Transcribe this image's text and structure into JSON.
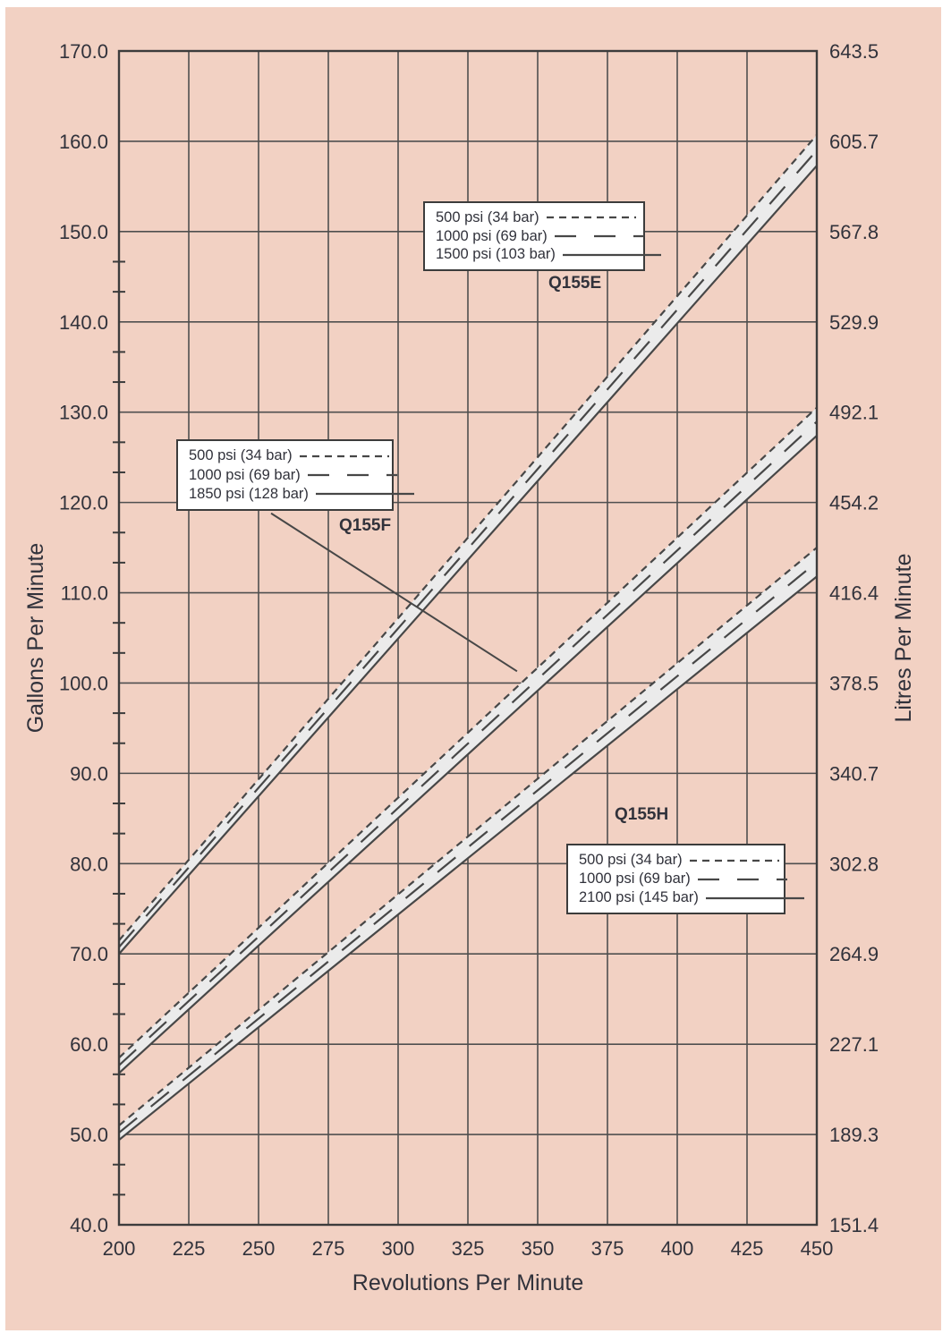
{
  "colors": {
    "panel": "#f2d1c3",
    "grid": "#4f4f4f",
    "border": "#3c3c3c",
    "line": "#474747",
    "band_fill": "#ebebeb",
    "text": "#31323b",
    "legend_background": "#ffffff"
  },
  "chart_data": {
    "type": "line",
    "title": "",
    "xlabel": "Revolutions Per Minute",
    "ylabel_left": "Gallons Per Minute",
    "ylabel_right": "Litres Per Minute",
    "xlim": [
      200,
      450
    ],
    "x_ticks": [
      200,
      225,
      250,
      275,
      300,
      325,
      350,
      375,
      400,
      425,
      450
    ],
    "x_tick_labels": [
      "200",
      "225",
      "250",
      "275",
      "300",
      "325",
      "350",
      "375",
      "400",
      "425",
      "450"
    ],
    "ylim": [
      40,
      170
    ],
    "y_ticks_gpm": [
      170,
      160,
      150,
      140,
      130,
      120,
      110,
      100,
      90,
      80,
      70,
      60,
      50,
      40
    ],
    "y_tick_labels_left": [
      "170.0",
      "160.0",
      "150.0",
      "140.0",
      "130.0",
      "120.0",
      "110.0",
      "100.0",
      "90.0",
      "80.0",
      "70.0",
      "60.0",
      "50.0",
      "40.0"
    ],
    "y_tick_labels_right": [
      "643.5",
      "605.7",
      "567.8",
      "529.9",
      "492.1",
      "454.2",
      "416.4",
      "378.5",
      "340.7",
      "302.8",
      "264.9",
      "227.1",
      "189.3",
      "151.4"
    ],
    "y_minor_ticks": {
      "below_gpm": 150,
      "per_interval": 3
    },
    "grid": true,
    "series": [
      {
        "pump": "Q155E",
        "lines": [
          {
            "label": "500 psi (34 bar)",
            "style": "dash",
            "x": [
              200,
              450
            ],
            "gpm": [
              71.5,
              160.7
            ]
          },
          {
            "label": "1000 psi (69 bar)",
            "style": "longdash",
            "x": [
              200,
              450
            ],
            "gpm": [
              70.75,
              159.0
            ]
          },
          {
            "label": "1500 psi (103 bar)",
            "style": "solid",
            "x": [
              200,
              450
            ],
            "gpm": [
              70.0,
              157.3
            ]
          }
        ]
      },
      {
        "pump": "Q155F",
        "lines": [
          {
            "label": "500 psi (34 bar)",
            "style": "dash",
            "x": [
              200,
              450
            ],
            "gpm": [
              58.5,
              130.5
            ]
          },
          {
            "label": "1000 psi (69 bar)",
            "style": "longdash",
            "x": [
              200,
              450
            ],
            "gpm": [
              57.65,
              128.95
            ]
          },
          {
            "label": "1850 psi (128 bar)",
            "style": "solid",
            "x": [
              200,
              450
            ],
            "gpm": [
              56.8,
              127.4
            ]
          }
        ]
      },
      {
        "pump": "Q155H",
        "lines": [
          {
            "label": "500 psi (34 bar)",
            "style": "dash",
            "x": [
              200,
              450
            ],
            "gpm": [
              51.0,
              115.0
            ]
          },
          {
            "label": "1000 psi (69 bar)",
            "style": "longdash",
            "x": [
              200,
              450
            ],
            "gpm": [
              50.2,
              113.4
            ]
          },
          {
            "label": "2100 psi (145 bar)",
            "style": "solid",
            "x": [
              200,
              450
            ],
            "gpm": [
              49.4,
              111.8
            ]
          }
        ]
      }
    ],
    "annotations": [
      {
        "type": "callout-line",
        "from_rpm": 254.5,
        "from_gpm": 118.8,
        "to_rpm": 342.6,
        "to_gpm": 101.3
      }
    ]
  },
  "legends": [
    {
      "pump_label": "Q155E",
      "rows": [
        {
          "label": "500 psi (34 bar)",
          "style": "dash"
        },
        {
          "label": "1000 psi (69 bar)",
          "style": "longdash"
        },
        {
          "label": "1500 psi (103 bar)",
          "style": "solid"
        }
      ]
    },
    {
      "pump_label": "Q155F",
      "rows": [
        {
          "label": "500 psi (34 bar)",
          "style": "dash"
        },
        {
          "label": "1000 psi (69 bar)",
          "style": "longdash"
        },
        {
          "label": "1850 psi (128 bar)",
          "style": "solid"
        }
      ]
    },
    {
      "pump_label": "Q155H",
      "rows": [
        {
          "label": "500 psi (34 bar)",
          "style": "dash"
        },
        {
          "label": "1000 psi (69 bar)",
          "style": "longdash"
        },
        {
          "label": "2100 psi (145 bar)",
          "style": "solid"
        }
      ]
    }
  ]
}
